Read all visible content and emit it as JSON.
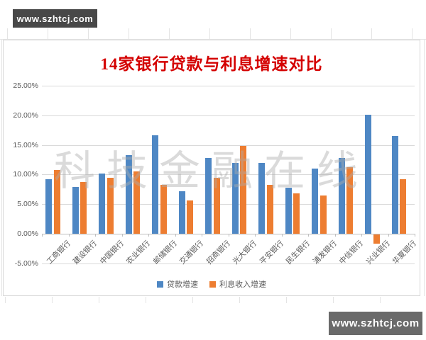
{
  "badges": {
    "top_left": "www.szhtcj.com",
    "bottom_right": "www.szhtcj.com"
  },
  "watermark_text": "科技金融在线",
  "chart_data": {
    "type": "bar",
    "title": "14家银行贷款与利息增速对比",
    "title_color": "#D40000",
    "categories": [
      "工商银行",
      "建设银行",
      "中国银行",
      "农业银行",
      "邮储银行",
      "交通银行",
      "招商银行",
      "光大银行",
      "平安银行",
      "民生银行",
      "浦发银行",
      "中信银行",
      "兴业银行",
      "华夏银行"
    ],
    "series": [
      {
        "name": "贷款增速",
        "color": "#4E87C4",
        "values": [
          9.2,
          7.9,
          10.2,
          13.3,
          16.6,
          7.2,
          12.8,
          12.0,
          12.0,
          7.8,
          11.0,
          12.8,
          20.1,
          16.5
        ]
      },
      {
        "name": "利息收入增速",
        "color": "#ED7D31",
        "values": [
          10.8,
          8.7,
          9.5,
          10.5,
          8.2,
          5.6,
          9.5,
          14.8,
          8.3,
          6.8,
          6.5,
          11.3,
          -1.5,
          9.2
        ]
      }
    ],
    "ylim": [
      -5,
      25
    ],
    "ytick_step": 5,
    "ytick_labels": [
      "25.00%",
      "20.00%",
      "15.00%",
      "10.00%",
      "5.00%",
      "0.00%",
      "-5.00%"
    ],
    "grid": true,
    "legend_position": "bottom",
    "axis_text_color": "#595959",
    "gridline_color": "#D9D9D9",
    "zero_line_color": "#BFBFBF"
  }
}
